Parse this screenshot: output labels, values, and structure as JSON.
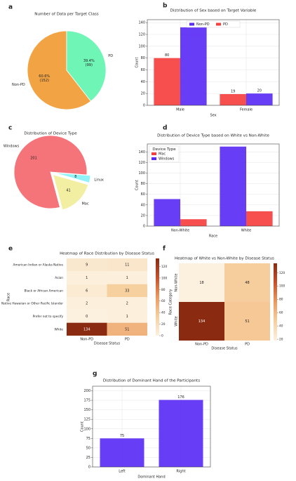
{
  "chart_data": [
    {
      "type": "pie",
      "panel": "a",
      "title": "Number of Data per Target Class",
      "categories": [
        "Non-PD",
        "PD"
      ],
      "values": [
        152,
        99
      ],
      "value_labels": [
        "60.6%\n(152)",
        "39.4%\n(99)"
      ],
      "colors": [
        "#f2a444",
        "#6ff5b5"
      ],
      "startangle": 90,
      "counterclock": true
    },
    {
      "type": "bar",
      "panel": "b",
      "title": "Distribution of Sex based on Target Variable",
      "categories": [
        "Male",
        "Female"
      ],
      "series": [
        {
          "name": "Non-PD",
          "color": "#5b2cf5",
          "values": [
            132,
            20
          ]
        },
        {
          "name": "PD",
          "color": "#f5403f",
          "values": [
            80,
            19
          ]
        }
      ],
      "xlabel": "Sex",
      "ylabel": "Count",
      "ylim": [
        0,
        145
      ],
      "yticks": [
        0,
        20,
        40,
        60,
        80,
        100,
        120,
        140
      ],
      "grid": true,
      "legend": "upper center",
      "show_values": true
    },
    {
      "type": "pie",
      "panel": "c",
      "title": "Distribution of Device Type",
      "categories": [
        "Windows",
        "Linux",
        "Mac"
      ],
      "values": [
        201,
        8,
        41
      ],
      "colors": [
        "#f4747a",
        "#8ff3f8",
        "#f2eea2"
      ],
      "startangle": -75,
      "counterclock": false,
      "explode": [
        0,
        0.1,
        0.1
      ]
    },
    {
      "type": "bar",
      "panel": "d",
      "title": "Distribution of Device Type based on White vs Non-White",
      "categories": [
        "Non-White",
        "White"
      ],
      "series": [
        {
          "name": "Mac",
          "color": "#f5403f",
          "values": [
            13,
            28
          ]
        },
        {
          "name": "Windows",
          "color": "#5b2cf5",
          "values": [
            51,
            150
          ]
        }
      ],
      "xlabel": "Race",
      "ylabel": "Count",
      "ylim": [
        0,
        155
      ],
      "yticks": [
        0,
        20,
        40,
        60,
        80,
        100,
        120,
        140
      ],
      "grid": true,
      "legend": "upper left",
      "legend_title": "Device Type"
    },
    {
      "type": "heatmap",
      "panel": "e",
      "title": "Heatmap of Race Distribution by Disease Status",
      "rows": [
        "American Indian or Alaska Native",
        "Asian",
        "Black or African American",
        "Native Hawaiian or Other Pacific Islander",
        "Prefer not to specify",
        "White"
      ],
      "columns": [
        "Non-PD",
        "PD"
      ],
      "values": [
        [
          9,
          11
        ],
        [
          1,
          1
        ],
        [
          6,
          33
        ],
        [
          2,
          2
        ],
        [
          0,
          1
        ],
        [
          134,
          51
        ]
      ],
      "xlabel": "Disease Status",
      "ylabel": "Race",
      "clim": [
        0,
        134
      ],
      "cticks": [
        0,
        20,
        40,
        60,
        80,
        100,
        120
      ],
      "colormap": [
        "#fcf1df",
        "#f6cf9e",
        "#ec9a5e",
        "#c9502a",
        "#8a2a10"
      ]
    },
    {
      "type": "heatmap",
      "panel": "f",
      "title": "Heatmap of White vs Non-White by Disease Status",
      "rows": [
        "Non-White",
        "White"
      ],
      "columns": [
        "Non-PD",
        "PD"
      ],
      "values": [
        [
          18,
          48
        ],
        [
          134,
          51
        ]
      ],
      "xlabel": "Disease Status",
      "ylabel": "Race Category",
      "clim": [
        18,
        134
      ],
      "cticks": [
        20,
        40,
        60,
        80,
        100,
        120
      ],
      "colormap": [
        "#fcf1df",
        "#f6cf9e",
        "#ec9a5e",
        "#c9502a",
        "#8a2a10"
      ]
    },
    {
      "type": "bar",
      "panel": "g",
      "title": "Distribution of Dominant Hand of the Participants",
      "categories": [
        "Left",
        "Right"
      ],
      "values": [
        75,
        176
      ],
      "color": "#5b2cf5",
      "xlabel": "Dominant Hand",
      "ylabel": "Count",
      "ylim": [
        0,
        212
      ],
      "yticks": [
        0,
        25,
        50,
        75,
        100,
        125,
        150,
        175,
        200
      ],
      "grid": true,
      "show_values": true
    }
  ]
}
